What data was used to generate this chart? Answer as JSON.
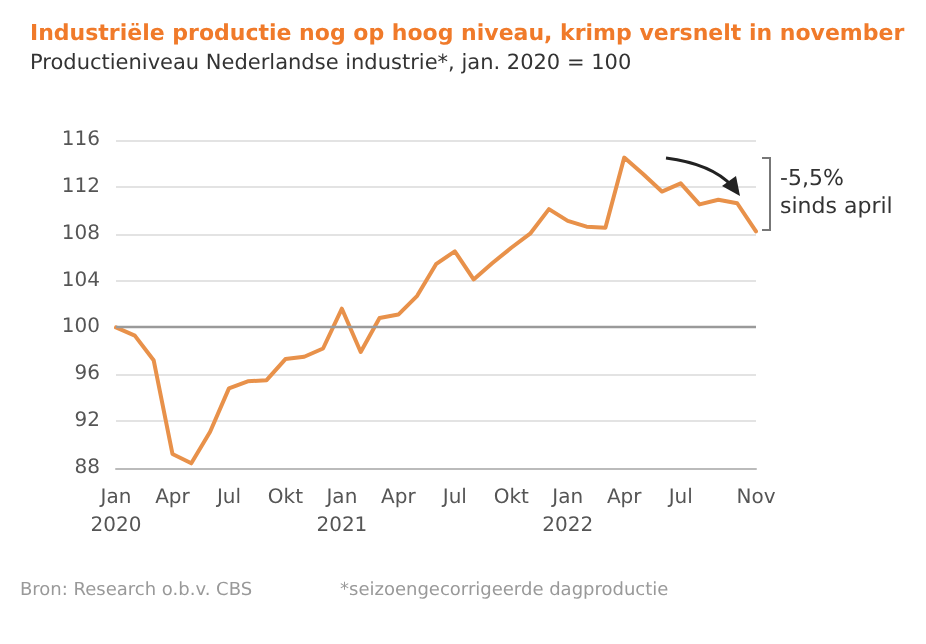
{
  "chart_data": {
    "type": "line",
    "title": "Industriële productie nog op hoog niveau, krimp versnelt in november",
    "subtitle": "Productieniveau Nederlandse industrie*, jan. 2020 = 100",
    "categories": [
      "Jan\n2020",
      null,
      null,
      "Apr",
      null,
      null,
      "Jul",
      null,
      null,
      "Okt",
      null,
      null,
      "Jan\n2021",
      null,
      null,
      "Apr",
      null,
      null,
      "Jul",
      null,
      null,
      "Okt",
      null,
      null,
      "Jan\n2022",
      null,
      null,
      "Apr",
      null,
      null,
      "Jul",
      null,
      null,
      null,
      "Nov"
    ],
    "series": [
      {
        "color": "#e8914a",
        "values": [
          100,
          99.3,
          97.2,
          89.2,
          88.4,
          91.1,
          94.8,
          95.4,
          95.5,
          97.3,
          97.5,
          98.2,
          101.6,
          97.9,
          100.8,
          101.1,
          102.7,
          105.4,
          106.5,
          104.1,
          105.5,
          106.8,
          108.0,
          110.1,
          109.1,
          108.6,
          108.5,
          114.5,
          113.1,
          111.6,
          112.3,
          110.5,
          110.9,
          110.6,
          108.2
        ]
      }
    ],
    "ylim": [
      88,
      116
    ],
    "yticks": [
      88,
      92,
      96,
      100,
      104,
      108,
      112,
      116
    ],
    "grid": "y",
    "marker": "none",
    "line_style": "solid",
    "ref_lines": [
      {
        "axis": "y",
        "value": 100,
        "color": "#9a9a9a"
      }
    ],
    "annotations": [
      "-5,5%\nsinds april",
      "Bron: Research o.b.v. CBS",
      "*seizoengecorrigeerde dagproductie"
    ]
  }
}
